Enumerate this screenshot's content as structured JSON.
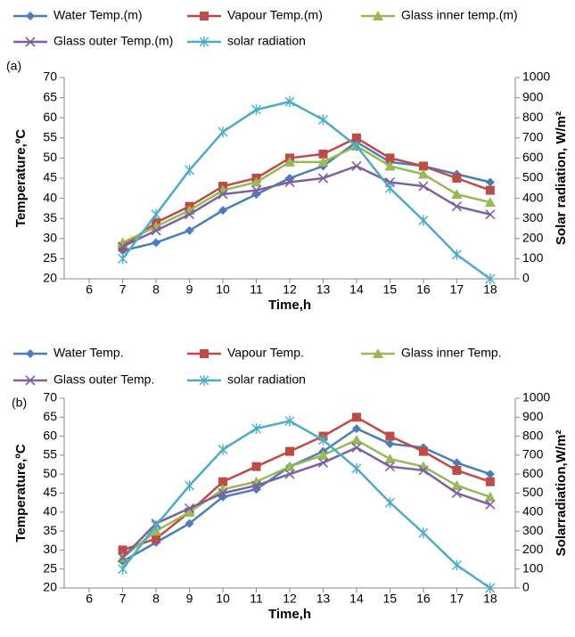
{
  "chart_data": [
    {
      "type": "line",
      "panel_label": "(a)",
      "x_label": "Time,h",
      "y_label": "Temperature,ºC",
      "y2_label": "Solar radiation, W/m²",
      "x": [
        7,
        8,
        9,
        10,
        11,
        12,
        13,
        14,
        15,
        16,
        17,
        18
      ],
      "xlim": [
        5.25,
        18.75
      ],
      "xticks": [
        6,
        7,
        8,
        9,
        10,
        11,
        12,
        13,
        14,
        15,
        16,
        17,
        18
      ],
      "ylim": [
        20,
        70
      ],
      "yticks": [
        20,
        25,
        30,
        35,
        40,
        45,
        50,
        55,
        60,
        65,
        70
      ],
      "y2lim": [
        0,
        1000
      ],
      "y2ticks": [
        0,
        100,
        200,
        300,
        400,
        500,
        600,
        700,
        800,
        900,
        1000
      ],
      "series": [
        {
          "name": "Water Temp.(m)",
          "color": "#4a7ebb",
          "marker": "diamond",
          "values": [
            27,
            29,
            32,
            37,
            41,
            45,
            48,
            54,
            49,
            48,
            46,
            44
          ]
        },
        {
          "name": "Vapour Temp.(m)",
          "color": "#be4b48",
          "marker": "square",
          "values": [
            28,
            34,
            38,
            43,
            45,
            50,
            51,
            55,
            50,
            48,
            45,
            42
          ]
        },
        {
          "name": "Glass inner temp.(m)",
          "color": "#98b954",
          "marker": "triangle",
          "values": [
            29,
            33,
            37,
            42,
            44,
            49,
            49,
            53,
            48,
            46,
            41,
            39
          ]
        },
        {
          "name": "Glass outer Temp.(m)",
          "color": "#7d60a0",
          "marker": "x",
          "values": [
            28,
            32,
            36,
            41,
            42,
            44,
            45,
            48,
            44,
            43,
            38,
            36
          ]
        },
        {
          "name": "solar radiation",
          "color": "#4bacc6",
          "marker": "star",
          "axis": "y2",
          "values": [
            100,
            320,
            540,
            730,
            840,
            880,
            790,
            660,
            450,
            290,
            120,
            0
          ]
        }
      ]
    },
    {
      "type": "line",
      "panel_label": "(b)",
      "x_label": "Time,h",
      "y_label": "Temperature,ºC",
      "y2_label": "Solarradiation,W/m²",
      "x": [
        7,
        8,
        9,
        10,
        11,
        12,
        13,
        14,
        15,
        16,
        17,
        18
      ],
      "xlim": [
        5.25,
        18.75
      ],
      "xticks": [
        6,
        7,
        8,
        9,
        10,
        11,
        12,
        13,
        14,
        15,
        16,
        17,
        18
      ],
      "ylim": [
        20,
        70
      ],
      "yticks": [
        20,
        25,
        30,
        35,
        40,
        45,
        50,
        55,
        60,
        65,
        70
      ],
      "y2lim": [
        0,
        1000
      ],
      "y2ticks": [
        0,
        100,
        200,
        300,
        400,
        500,
        600,
        700,
        800,
        900,
        1000
      ],
      "series": [
        {
          "name": "Water Temp.",
          "color": "#4a7ebb",
          "marker": "diamond",
          "values": [
            27,
            32,
            37,
            44,
            46,
            52,
            56,
            62,
            58,
            57,
            53,
            50
          ]
        },
        {
          "name": "Vapour Temp.",
          "color": "#be4b48",
          "marker": "square",
          "values": [
            30,
            33,
            40,
            48,
            52,
            56,
            60,
            65,
            60,
            56,
            51,
            48
          ]
        },
        {
          "name": "Glass inner Temp.",
          "color": "#98b954",
          "marker": "triangle",
          "values": [
            28,
            35,
            40,
            46,
            48,
            52,
            55,
            59,
            54,
            52,
            47,
            44
          ]
        },
        {
          "name": "Glass outer Temp.",
          "color": "#7d60a0",
          "marker": "x",
          "values": [
            28,
            37,
            41,
            45,
            47,
            50,
            53,
            57,
            52,
            51,
            45,
            42
          ]
        },
        {
          "name": "solar radiation",
          "color": "#4bacc6",
          "marker": "star",
          "axis": "y2",
          "values": [
            100,
            330,
            540,
            730,
            840,
            880,
            780,
            630,
            450,
            290,
            120,
            0
          ]
        }
      ]
    }
  ]
}
